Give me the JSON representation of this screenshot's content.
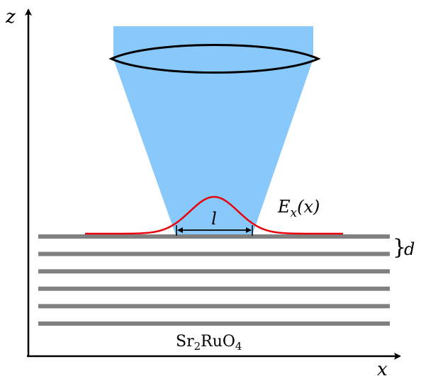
{
  "axes": {
    "x_label": "x",
    "z_label": "z"
  },
  "labels": {
    "field": {
      "symbol": "E",
      "subscript": "x",
      "argument": "(x)"
    },
    "width": "l",
    "spacing_brace": "}",
    "spacing": "d",
    "material": {
      "part1": "Sr",
      "sub1": "2",
      "part2": "RuO",
      "sub2": "4"
    }
  },
  "colors": {
    "beam": "#88c8fa",
    "lens_outline": "#000000",
    "field_curve": "#e8000b",
    "layers": "#808080",
    "axes": "#000000"
  },
  "icons": {
    "lens": "biconvex-lens",
    "beam": "focused-light-cone"
  },
  "layer_count": 6
}
